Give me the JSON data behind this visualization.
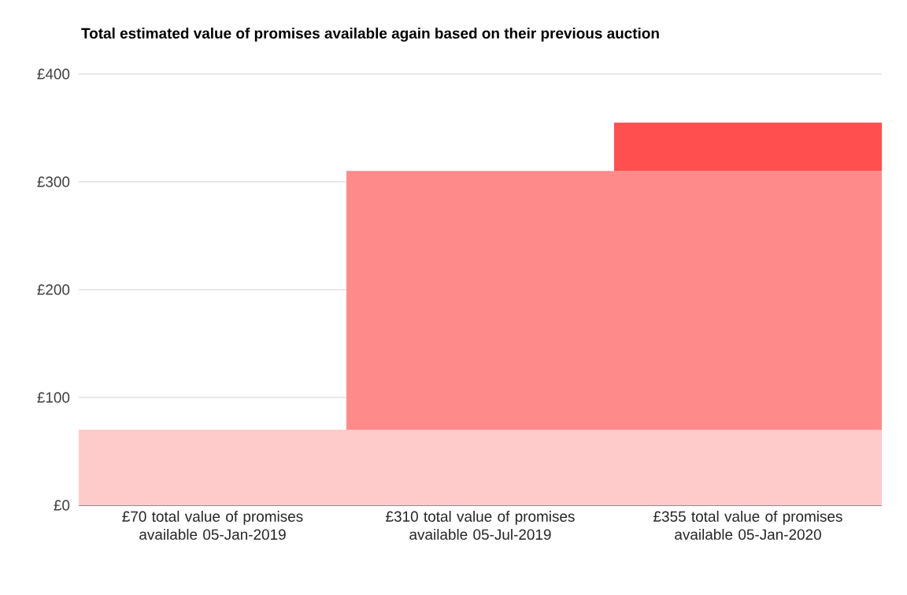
{
  "chart_data": {
    "type": "bar",
    "title": "Total estimated value of promises available again based on their previous auction",
    "categories": [
      "£70 total value of promises available 05-Jan-2019",
      "£310 total value of promises available 05-Jul-2019",
      "£355 total value of promises available 05-Jan-2020"
    ],
    "stacked": true,
    "series": [
      {
        "color": "#ffcaca",
        "values": [
          70,
          70,
          70
        ]
      },
      {
        "color": "#ff8a8a",
        "values": [
          null,
          240,
          240
        ]
      },
      {
        "color": "#ff4f4f",
        "values": [
          null,
          null,
          45
        ]
      }
    ],
    "ylim": [
      0,
      400
    ],
    "yticks": [
      {
        "value": 0,
        "label": "£0"
      },
      {
        "value": 100,
        "label": "£100"
      },
      {
        "value": 200,
        "label": "£200"
      },
      {
        "value": 300,
        "label": "£300"
      },
      {
        "value": 400,
        "label": "£400"
      }
    ],
    "grid": "y"
  }
}
